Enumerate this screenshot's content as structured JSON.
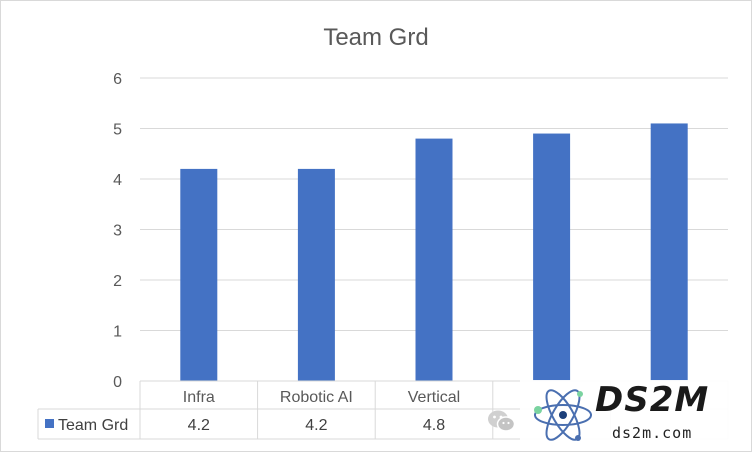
{
  "chart_data": {
    "type": "bar",
    "title": "Team Grd",
    "categories": [
      "Infra",
      "Robotic AI",
      "Vertical",
      "",
      ""
    ],
    "series": [
      {
        "name": "Team Grd",
        "values": [
          4.2,
          4.2,
          4.8,
          4.9,
          5.1
        ],
        "color": "#4472C4"
      }
    ],
    "table_values_visible": [
      "4.2",
      "4.2",
      "4.8"
    ],
    "ylim": [
      0,
      6
    ],
    "yticks": [
      "0",
      "1",
      "2",
      "3",
      "4",
      "5",
      "6"
    ],
    "grid": true,
    "legend": "data-table"
  },
  "watermark": {
    "logo_text": "DS2M",
    "sub_text": "ds2m.com"
  },
  "icons": {
    "wechat": "wechat-icon",
    "atom": "atom-icon"
  }
}
